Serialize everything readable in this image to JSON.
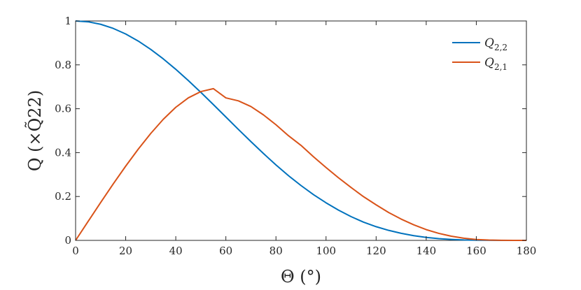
{
  "chart_data": {
    "type": "line",
    "xlabel": "Θ (°)",
    "ylabel": "Q (×Q̃22)",
    "xlim": [
      0,
      180
    ],
    "ylim": [
      0,
      1
    ],
    "xticks": [
      0,
      20,
      40,
      60,
      80,
      100,
      120,
      140,
      160,
      180
    ],
    "yticks": [
      0,
      0.2,
      0.4,
      0.6,
      0.8,
      1
    ],
    "yticklabels": [
      "0",
      "0.2",
      "0.4",
      "0.6",
      "0.8",
      "1"
    ],
    "grid": false,
    "legend_position": "top-right",
    "x": [
      0,
      5,
      10,
      15,
      20,
      25,
      30,
      35,
      40,
      45,
      50,
      55,
      60,
      65,
      70,
      75,
      80,
      85,
      90,
      95,
      100,
      105,
      110,
      115,
      120,
      125,
      130,
      135,
      140,
      145,
      150,
      155,
      160,
      165,
      170,
      175,
      180
    ],
    "series": [
      {
        "name": "Q2,2",
        "color": "#0072bd",
        "values": [
          1.0,
          0.9962,
          0.9849,
          0.9662,
          0.9406,
          0.9085,
          0.8705,
          0.8273,
          0.7797,
          0.7286,
          0.6747,
          0.6191,
          0.5625,
          0.5059,
          0.4502,
          0.396,
          0.344,
          0.2949,
          0.25,
          0.2085,
          0.1713,
          0.1378,
          0.1083,
          0.083,
          0.0625,
          0.0457,
          0.0323,
          0.0214,
          0.0134,
          0.0079,
          0.0045,
          0.002,
          0.0009,
          0.0003,
          0.0001,
          0.0,
          0.0
        ]
      },
      {
        "name": "Q2,1",
        "color": "#d95319",
        "values": [
          0.0,
          0.0866,
          0.1726,
          0.257,
          0.3384,
          0.4155,
          0.4873,
          0.5517,
          0.6067,
          0.6495,
          0.6781,
          0.6916,
          0.6495,
          0.636,
          0.61,
          0.572,
          0.527,
          0.477,
          0.433,
          0.381,
          0.332,
          0.285,
          0.241,
          0.199,
          0.162,
          0.127,
          0.097,
          0.071,
          0.049,
          0.032,
          0.019,
          0.01,
          0.004,
          0.0015,
          0.0004,
          0.0,
          0.0
        ]
      }
    ]
  }
}
